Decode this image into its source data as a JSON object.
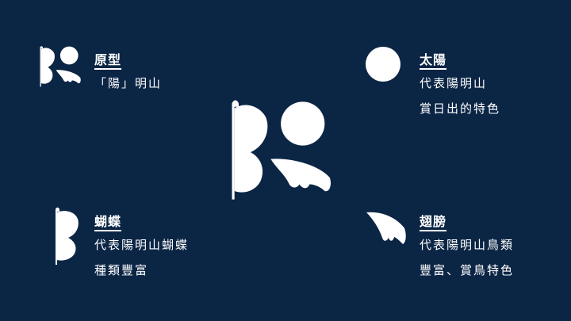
{
  "sections": {
    "prototype": {
      "title": "原型",
      "lines": [
        "「陽」明山"
      ],
      "icon": "butterfly-sun-wing-logo-icon"
    },
    "sun": {
      "title": "太陽",
      "lines": [
        "代表陽明山",
        "賞日出的特色"
      ],
      "icon": "sun-circle-icon"
    },
    "butterfly": {
      "title": "蝴蝶",
      "lines": [
        "代表陽明山蝴蝶",
        "種類豐富"
      ],
      "icon": "butterfly-half-icon"
    },
    "wing": {
      "title": "翅膀",
      "lines": [
        "代表陽明山鳥類",
        "豐富、賞鳥特色"
      ],
      "icon": "bird-wing-icon"
    }
  },
  "colors": {
    "background": "#0b2545",
    "foreground": "#ffffff"
  }
}
